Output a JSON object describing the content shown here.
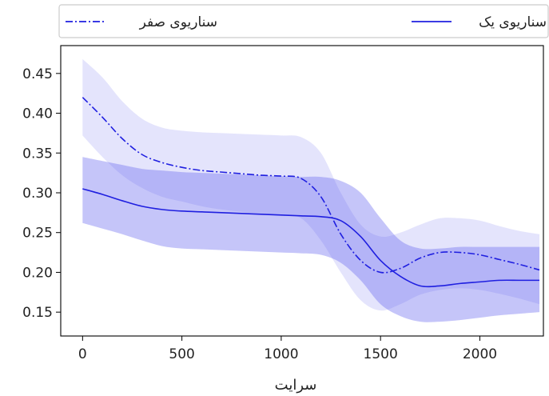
{
  "chart_data": {
    "type": "line",
    "title": "",
    "xlabel": "سرایت",
    "ylabel": "",
    "xlim": [
      -110,
      2320
    ],
    "ylim": [
      0.12,
      0.485
    ],
    "xticks": [
      0,
      500,
      1000,
      1500,
      2000
    ],
    "yticks": [
      0.15,
      0.2,
      0.25,
      0.3,
      0.35,
      0.4,
      0.45
    ],
    "grid": false,
    "legend_position": "top",
    "series": [
      {
        "name": "سناریوی یک",
        "line_style": "solid",
        "color": "#1f1fe0",
        "band_color": "#6666ee",
        "x": [
          0,
          100,
          200,
          300,
          400,
          500,
          600,
          700,
          800,
          900,
          1000,
          1100,
          1200,
          1300,
          1400,
          1500,
          1600,
          1700,
          1800,
          1900,
          2000,
          2100,
          2200,
          2300
        ],
        "values": [
          0.305,
          0.298,
          0.29,
          0.283,
          0.279,
          0.277,
          0.276,
          0.275,
          0.274,
          0.273,
          0.272,
          0.271,
          0.27,
          0.265,
          0.245,
          0.215,
          0.195,
          0.183,
          0.183,
          0.186,
          0.188,
          0.19,
          0.19,
          0.19
        ],
        "upper": [
          0.345,
          0.34,
          0.335,
          0.33,
          0.328,
          0.326,
          0.325,
          0.324,
          0.323,
          0.322,
          0.321,
          0.32,
          0.32,
          0.315,
          0.3,
          0.268,
          0.24,
          0.23,
          0.23,
          0.232,
          0.232,
          0.232,
          0.232,
          0.232
        ],
        "lower": [
          0.262,
          0.255,
          0.248,
          0.24,
          0.233,
          0.23,
          0.229,
          0.228,
          0.227,
          0.226,
          0.225,
          0.224,
          0.222,
          0.212,
          0.19,
          0.16,
          0.145,
          0.138,
          0.138,
          0.14,
          0.143,
          0.146,
          0.148,
          0.15
        ]
      },
      {
        "name": "سناریوی صفر",
        "line_style": "dashdot",
        "color": "#1f1fe0",
        "band_color": "#aaaaf5",
        "x": [
          0,
          100,
          200,
          300,
          400,
          500,
          600,
          700,
          800,
          900,
          1000,
          1100,
          1200,
          1300,
          1400,
          1500,
          1600,
          1700,
          1800,
          1900,
          2000,
          2100,
          2200,
          2300
        ],
        "values": [
          0.42,
          0.395,
          0.368,
          0.348,
          0.338,
          0.332,
          0.328,
          0.326,
          0.324,
          0.322,
          0.321,
          0.318,
          0.295,
          0.248,
          0.215,
          0.2,
          0.205,
          0.218,
          0.225,
          0.225,
          0.222,
          0.216,
          0.21,
          0.203
        ],
        "upper": [
          0.468,
          0.445,
          0.415,
          0.393,
          0.382,
          0.378,
          0.376,
          0.375,
          0.374,
          0.373,
          0.372,
          0.37,
          0.35,
          0.3,
          0.26,
          0.245,
          0.25,
          0.26,
          0.268,
          0.268,
          0.265,
          0.258,
          0.252,
          0.248
        ],
        "lower": [
          0.372,
          0.345,
          0.322,
          0.306,
          0.295,
          0.289,
          0.283,
          0.279,
          0.276,
          0.274,
          0.272,
          0.268,
          0.24,
          0.2,
          0.165,
          0.152,
          0.16,
          0.172,
          0.178,
          0.18,
          0.178,
          0.173,
          0.167,
          0.16
        ]
      }
    ]
  }
}
